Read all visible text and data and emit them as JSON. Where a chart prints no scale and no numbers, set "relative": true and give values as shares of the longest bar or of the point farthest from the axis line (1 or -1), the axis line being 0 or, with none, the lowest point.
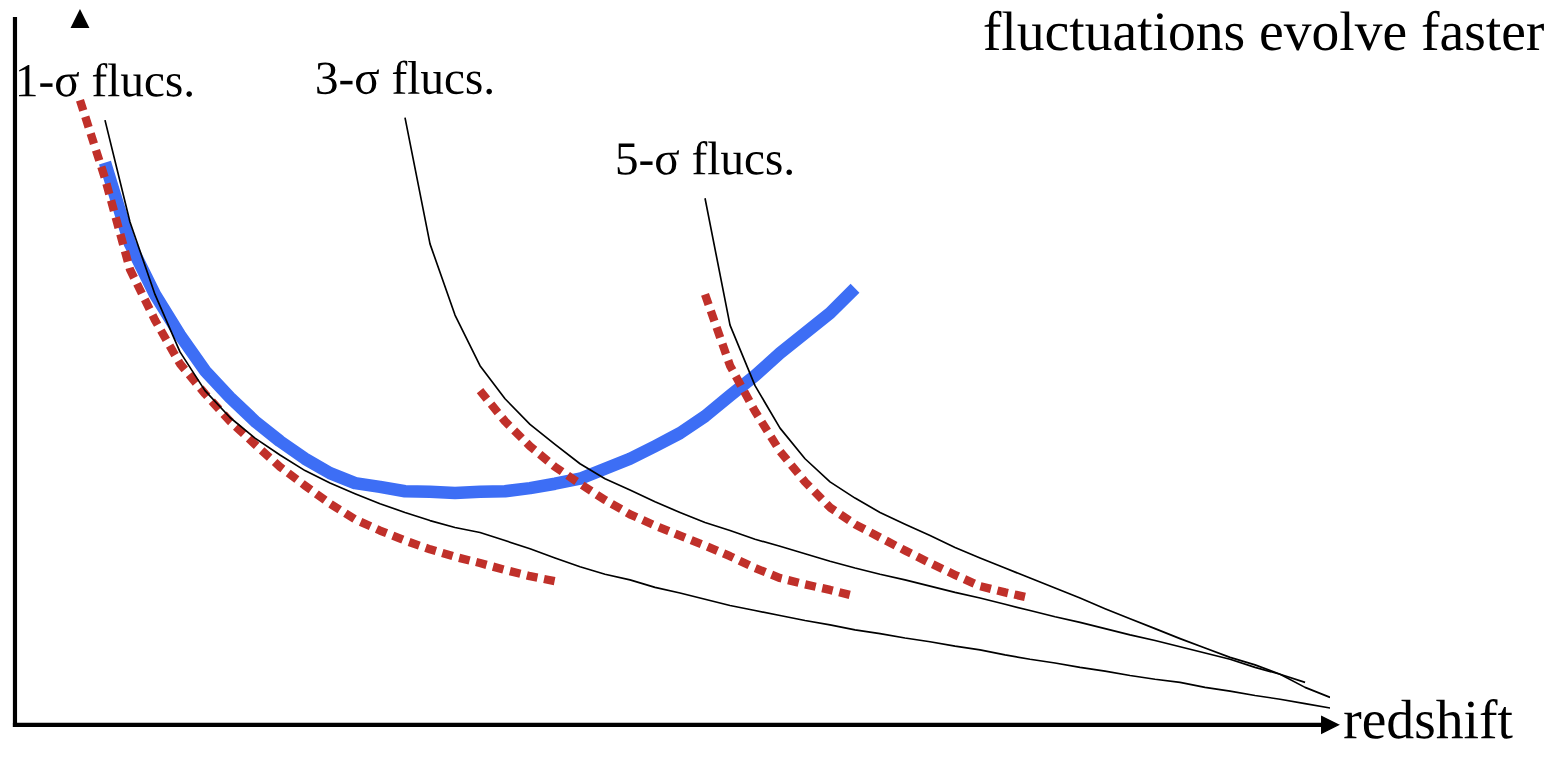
{
  "chart_data": {
    "type": "line",
    "title": "fluctuations evolve faster",
    "xlabel": "redshift",
    "relative": true,
    "marker": "none",
    "categories": [
      null,
      null,
      null,
      null,
      null,
      null,
      null,
      null,
      null,
      null,
      null,
      null,
      null,
      null,
      null,
      null,
      null,
      null,
      null,
      null,
      null,
      null,
      null,
      null,
      null,
      null,
      null,
      null,
      null,
      null,
      null,
      null,
      null,
      null,
      null,
      null,
      null,
      null,
      null,
      null,
      null,
      null,
      null,
      null,
      null,
      null,
      null,
      null,
      null,
      null,
      null
    ],
    "series": [
      {
        "name": "1-σ flucs.",
        "color": "#000000",
        "line_style": "solid",
        "values": [
          null,
          0.968,
          0.805,
          0.689,
          0.597,
          0.535,
          0.492,
          0.459,
          0.432,
          0.407,
          0.387,
          0.37,
          0.354,
          0.34,
          0.327,
          0.316,
          0.308,
          0.295,
          0.282,
          0.267,
          0.253,
          0.241,
          0.232,
          0.22,
          0.211,
          0.201,
          0.191,
          0.183,
          0.175,
          0.167,
          0.16,
          0.152,
          0.146,
          0.139,
          0.133,
          0.126,
          0.12,
          0.112,
          0.105,
          0.099,
          0.092,
          0.086,
          0.079,
          0.073,
          0.068,
          0.06,
          0.054,
          0.047,
          0.041,
          0.034,
          0.027
        ]
      },
      {
        "name": "3-σ flucs.",
        "color": "#000000",
        "line_style": "solid",
        "values": [
          null,
          null,
          null,
          null,
          null,
          null,
          null,
          null,
          null,
          null,
          null,
          null,
          null,
          0.972,
          0.77,
          0.656,
          0.575,
          0.522,
          0.481,
          0.449,
          0.418,
          0.394,
          0.376,
          0.357,
          0.34,
          0.324,
          0.311,
          0.297,
          0.286,
          0.274,
          0.262,
          0.251,
          0.241,
          0.232,
          0.222,
          0.212,
          0.203,
          0.193,
          0.183,
          0.173,
          0.164,
          0.154,
          0.144,
          0.135,
          0.125,
          0.115,
          0.105,
          0.092,
          0.081,
          0.06,
          0.044
        ]
      },
      {
        "name": "5-σ flucs.",
        "color": "#000000",
        "line_style": "solid",
        "values": [
          null,
          null,
          null,
          null,
          null,
          null,
          null,
          null,
          null,
          null,
          null,
          null,
          null,
          null,
          null,
          null,
          null,
          null,
          null,
          null,
          null,
          null,
          null,
          null,
          null,
          0.843,
          0.64,
          0.543,
          0.475,
          0.426,
          0.389,
          0.363,
          0.34,
          0.321,
          0.303,
          0.284,
          0.267,
          0.251,
          0.235,
          0.219,
          0.203,
          0.186,
          0.17,
          0.154,
          0.138,
          0.123,
          0.108,
          0.096,
          0.081,
          0.068,
          null
        ]
      },
      {
        "color": "#3d6ef5",
        "line_style": "solid",
        "values": [
          null,
          0.9,
          0.77,
          0.689,
          0.624,
          0.567,
          0.524,
          0.486,
          0.454,
          0.426,
          0.403,
          0.387,
          0.381,
          0.374,
          0.373,
          0.371,
          0.373,
          0.374,
          0.379,
          0.386,
          0.394,
          0.41,
          0.426,
          0.446,
          0.467,
          0.494,
          0.527,
          0.559,
          0.595,
          0.627,
          0.659,
          0.699,
          null,
          null,
          null,
          null,
          null,
          null,
          null,
          null,
          null,
          null,
          null,
          null,
          null,
          null,
          null,
          null,
          null,
          null,
          null
        ]
      },
      {
        "color": "#c0302a",
        "line_style": "dotted",
        "values": [
          1.0,
          0.875,
          0.729,
          0.648,
          0.578,
          0.53,
          0.486,
          0.449,
          0.413,
          0.383,
          0.354,
          0.329,
          0.311,
          0.295,
          0.281,
          0.269,
          0.259,
          0.248,
          0.238,
          0.23,
          null,
          null,
          null,
          null,
          null,
          null,
          null,
          null,
          null,
          null,
          null,
          null,
          null,
          null,
          null,
          null,
          null,
          null,
          null,
          null,
          null,
          null,
          null,
          null,
          null,
          null,
          null,
          null,
          null,
          null,
          null
        ]
      },
      {
        "color": "#c0302a",
        "line_style": "dotted",
        "values": [
          null,
          null,
          null,
          null,
          null,
          null,
          null,
          null,
          null,
          null,
          null,
          null,
          null,
          null,
          null,
          null,
          0.535,
          0.486,
          0.446,
          0.413,
          0.386,
          0.36,
          0.337,
          0.319,
          0.303,
          0.287,
          0.27,
          0.251,
          0.235,
          0.225,
          0.216,
          0.206,
          null,
          null,
          null,
          null,
          null,
          null,
          null,
          null,
          null,
          null,
          null,
          null,
          null,
          null,
          null,
          null,
          null,
          null,
          null
        ]
      },
      {
        "color": "#c0302a",
        "line_style": "dotted",
        "values": [
          null,
          null,
          null,
          null,
          null,
          null,
          null,
          null,
          null,
          null,
          null,
          null,
          null,
          null,
          null,
          null,
          null,
          null,
          null,
          null,
          null,
          null,
          null,
          null,
          null,
          0.689,
          0.575,
          0.502,
          0.438,
          0.389,
          0.348,
          0.321,
          0.3,
          0.279,
          0.259,
          0.24,
          0.222,
          0.212,
          0.203,
          null,
          null,
          null,
          null,
          null,
          null,
          null,
          null,
          null,
          null,
          null,
          null
        ]
      }
    ]
  }
}
